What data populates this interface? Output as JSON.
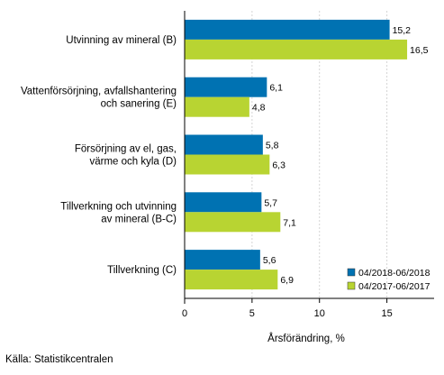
{
  "chart_data": {
    "type": "bar",
    "orientation": "horizontal",
    "categories": [
      [
        "Utvinning av mineral (B)"
      ],
      [
        "Vattenförsörjning, avfallshantering",
        "och sanering (E)"
      ],
      [
        "Försörjning av el, gas,",
        "värme och kyla (D)"
      ],
      [
        "Tillverkning och utvinning",
        "av mineral (B-C)"
      ],
      [
        "Tillverkning (C)"
      ]
    ],
    "series": [
      {
        "name": "04/2018-06/2018",
        "color": "#0072b2",
        "values": [
          15.2,
          6.1,
          5.8,
          5.7,
          5.6
        ],
        "labels": [
          "15,2",
          "6,1",
          "5,8",
          "5,7",
          "5,6"
        ]
      },
      {
        "name": "04/2017-06/2017",
        "color": "#b8d432",
        "values": [
          16.5,
          4.8,
          6.3,
          7.1,
          6.9
        ],
        "labels": [
          "16,5",
          "4,8",
          "6,3",
          "7,1",
          "6,9"
        ]
      }
    ],
    "xlim": [
      0,
      18.5
    ],
    "xticks": [
      0,
      5,
      10,
      15
    ],
    "xtick_labels": [
      "0",
      "5",
      "10",
      "15"
    ],
    "xlabel": "Årsförändring, %",
    "grid": "vertical",
    "legend_position": "bottom-right"
  },
  "source": "Källa: Statistikcentralen"
}
